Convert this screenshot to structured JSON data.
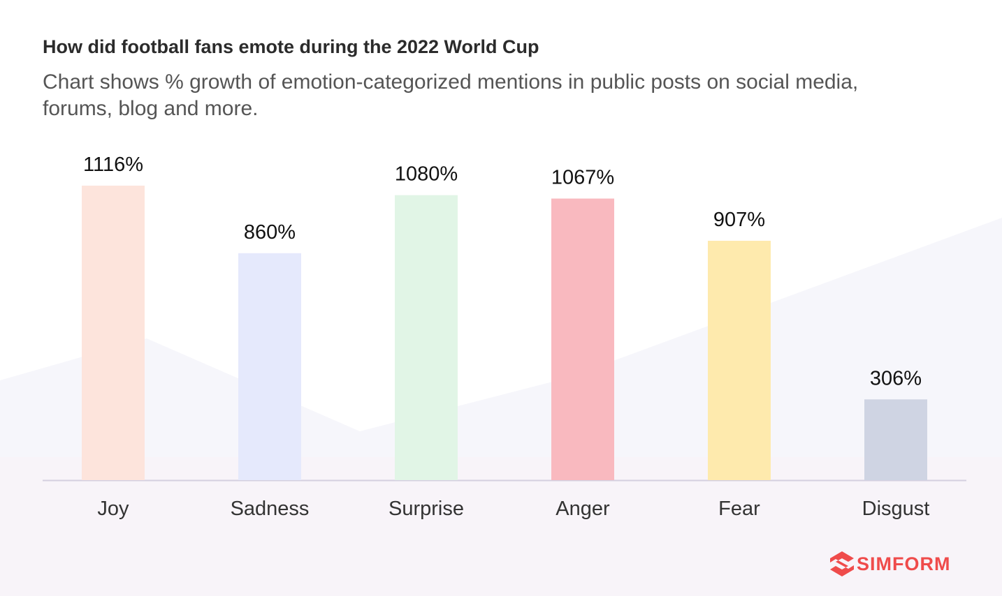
{
  "title": "How did football fans emote during the 2022 World Cup",
  "subtitle": "Chart shows % growth of emotion-categorized mentions in public posts on social media, forums, blog and more.",
  "brand": {
    "name": "SIMFORM",
    "color": "#ef4b4b",
    "icon": "simform-logo-icon"
  },
  "chart_data": {
    "type": "bar",
    "categories": [
      "Joy",
      "Sadness",
      "Surprise",
      "Anger",
      "Fear",
      "Disgust"
    ],
    "values": [
      1116,
      860,
      1080,
      1067,
      907,
      306
    ],
    "labels": [
      "1116%",
      "860%",
      "1080%",
      "1067%",
      "907%",
      "306%"
    ],
    "colors": [
      "#fde4dc",
      "#e5e9fc",
      "#e1f5e6",
      "#f9b9bf",
      "#feeaad",
      "#cfd4e3"
    ],
    "unit": "%",
    "grid": false,
    "legend": "none"
  }
}
